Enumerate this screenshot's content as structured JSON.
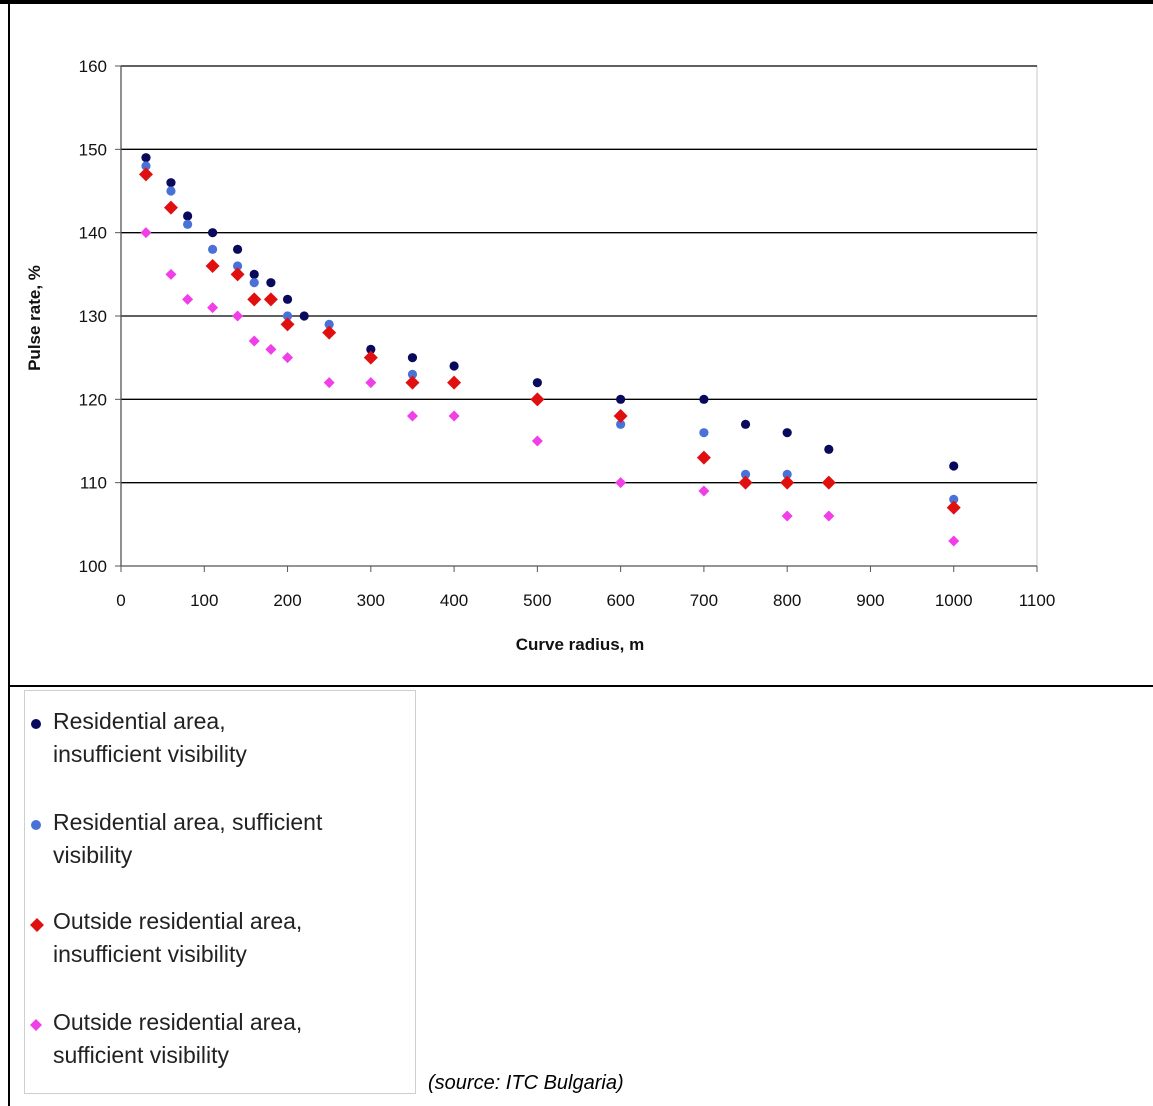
{
  "chart_data": {
    "type": "scatter",
    "xlabel": "Curve radius, m",
    "ylabel": "Pulse rate, %",
    "xlim": [
      0,
      1100
    ],
    "ylim": [
      100,
      160
    ],
    "xticks": [
      0,
      100,
      200,
      300,
      400,
      500,
      600,
      700,
      800,
      900,
      1000,
      1100
    ],
    "yticks": [
      100,
      110,
      120,
      130,
      140,
      150,
      160
    ],
    "grid": "horizontal",
    "legend_position": "bottom-left",
    "series": [
      {
        "name": "Residential area, insufficient visibility",
        "marker": "circle",
        "color": "#0a0a5c",
        "points": [
          [
            30,
            149
          ],
          [
            60,
            146
          ],
          [
            80,
            142
          ],
          [
            110,
            140
          ],
          [
            140,
            138
          ],
          [
            160,
            135
          ],
          [
            180,
            134
          ],
          [
            200,
            132
          ],
          [
            220,
            130
          ],
          [
            300,
            126
          ],
          [
            350,
            125
          ],
          [
            400,
            124
          ],
          [
            500,
            122
          ],
          [
            600,
            120
          ],
          [
            700,
            120
          ],
          [
            750,
            117
          ],
          [
            800,
            116
          ],
          [
            850,
            114
          ],
          [
            1000,
            112
          ]
        ]
      },
      {
        "name": "Residential area, sufficient visibility",
        "marker": "circle",
        "color": "#4a72d6",
        "points": [
          [
            30,
            148
          ],
          [
            60,
            145
          ],
          [
            80,
            141
          ],
          [
            110,
            138
          ],
          [
            140,
            136
          ],
          [
            160,
            134
          ],
          [
            180,
            132
          ],
          [
            200,
            130
          ],
          [
            250,
            129
          ],
          [
            300,
            125
          ],
          [
            350,
            123
          ],
          [
            400,
            122
          ],
          [
            500,
            120
          ],
          [
            600,
            117
          ],
          [
            700,
            116
          ],
          [
            750,
            111
          ],
          [
            800,
            111
          ],
          [
            850,
            110
          ],
          [
            1000,
            108
          ]
        ]
      },
      {
        "name": "Outside residential area, insufficient visibility",
        "marker": "diamond",
        "color": "#e01010",
        "points": [
          [
            30,
            147
          ],
          [
            60,
            143
          ],
          [
            110,
            136
          ],
          [
            140,
            135
          ],
          [
            160,
            132
          ],
          [
            180,
            132
          ],
          [
            200,
            129
          ],
          [
            250,
            128
          ],
          [
            300,
            125
          ],
          [
            350,
            122
          ],
          [
            400,
            122
          ],
          [
            500,
            120
          ],
          [
            600,
            118
          ],
          [
            700,
            113
          ],
          [
            750,
            110
          ],
          [
            800,
            110
          ],
          [
            850,
            110
          ],
          [
            1000,
            107
          ]
        ]
      },
      {
        "name": "Outside residential area, sufficient visibility",
        "marker": "diamond",
        "color": "#f03ee8",
        "points": [
          [
            30,
            140
          ],
          [
            60,
            135
          ],
          [
            80,
            132
          ],
          [
            110,
            131
          ],
          [
            140,
            130
          ],
          [
            160,
            127
          ],
          [
            180,
            126
          ],
          [
            200,
            125
          ],
          [
            250,
            122
          ],
          [
            300,
            122
          ],
          [
            350,
            118
          ],
          [
            400,
            118
          ],
          [
            500,
            115
          ],
          [
            600,
            110
          ],
          [
            700,
            109
          ],
          [
            800,
            106
          ],
          [
            850,
            106
          ],
          [
            1000,
            103
          ]
        ]
      }
    ]
  },
  "legend": {
    "items": [
      {
        "lines": [
          "Residential area,",
          "insufficient visibility"
        ]
      },
      {
        "lines": [
          "Residential area, sufficient",
          "visibility"
        ]
      },
      {
        "lines": [
          "Outside residential area,",
          "insufficient visibility"
        ]
      },
      {
        "lines": [
          "Outside residential area,",
          "sufficient visibility"
        ]
      }
    ]
  },
  "source": "(source: ITC Bulgaria)"
}
